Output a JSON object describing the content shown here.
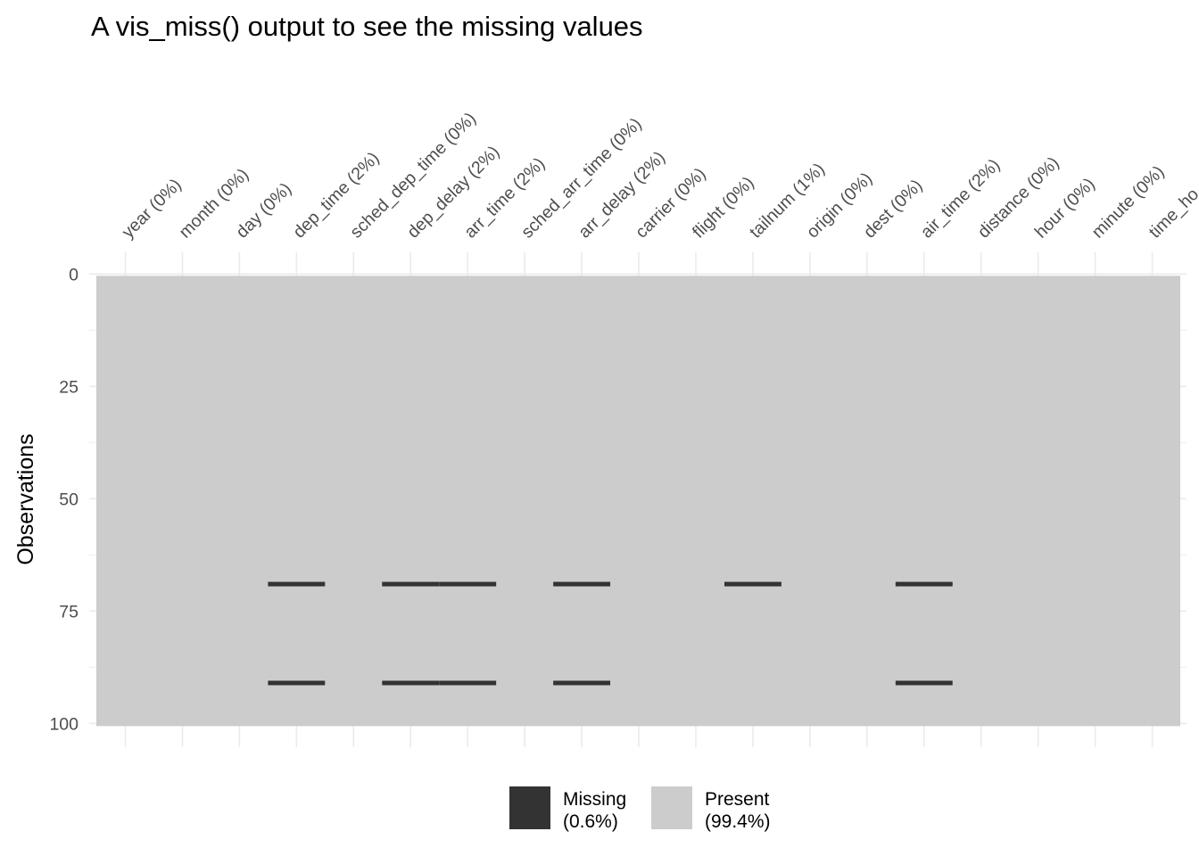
{
  "chart_data": {
    "type": "heatmap",
    "title": "A vis_miss() output to see the missing values",
    "xlabel": "",
    "ylabel": "Observations",
    "x_axis_position": "top",
    "variables": [
      "year (0%)",
      "month (0%)",
      "day (0%)",
      "dep_time (2%)",
      "sched_dep_time (0%)",
      "dep_delay (2%)",
      "arr_time (2%)",
      "sched_arr_time (0%)",
      "arr_delay (2%)",
      "carrier (0%)",
      "flight (0%)",
      "tailnum (1%)",
      "origin (0%)",
      "dest (0%)",
      "air_time (2%)",
      "distance (0%)",
      "hour (0%)",
      "minute (0%)",
      "time_ho"
    ],
    "n_observations": 100,
    "ylim": [
      0,
      100
    ],
    "y_ticks": [
      "0",
      "25",
      "50",
      "75",
      "100"
    ],
    "y_tick_values": [
      0,
      25,
      50,
      75,
      100
    ],
    "missing_cells": [
      {
        "variable": "dep_time (2%)",
        "rows": [
          69,
          91
        ]
      },
      {
        "variable": "dep_delay (2%)",
        "rows": [
          69,
          91
        ]
      },
      {
        "variable": "arr_time (2%)",
        "rows": [
          69,
          91
        ]
      },
      {
        "variable": "arr_delay (2%)",
        "rows": [
          69,
          91
        ]
      },
      {
        "variable": "tailnum (1%)",
        "rows": [
          69
        ]
      },
      {
        "variable": "air_time (2%)",
        "rows": [
          69,
          91
        ]
      }
    ],
    "legend": {
      "position": "bottom",
      "items": [
        {
          "label_line1": "Missing",
          "label_line2": "(0.6%)",
          "color": "#333333"
        },
        {
          "label_line1": "Present",
          "label_line2": "(99.4%)",
          "color": "#cccccc"
        }
      ]
    },
    "colors": {
      "missing": "#333333",
      "present": "#cccccc",
      "grid": "#ebebeb"
    }
  }
}
